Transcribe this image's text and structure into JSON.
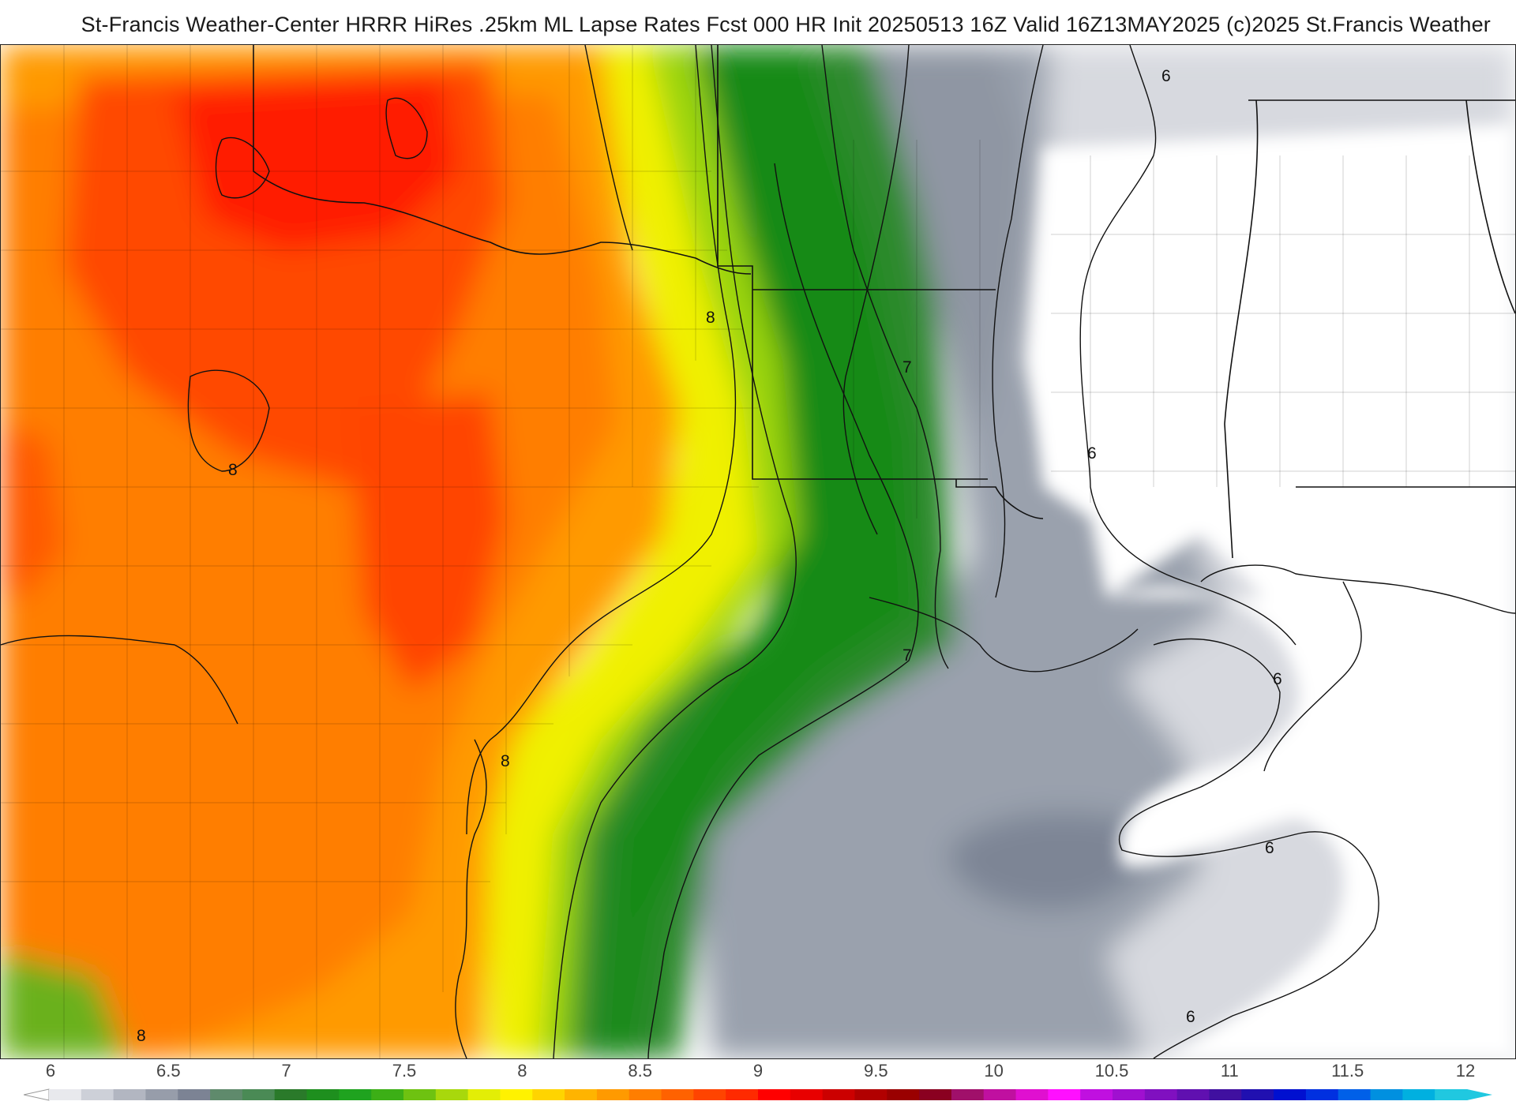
{
  "header": {
    "title": "St-Francis Weather-Center HRRR HiRes .25km ML Lapse Rates  Fcst 000 HR Init 20250513 16Z  Valid 16Z13MAY2025    (c)2025 St.Francis Weather"
  },
  "map": {
    "product": "ML Lapse Rates",
    "contour_labels": [
      "8",
      "8",
      "8",
      "8",
      "7",
      "7",
      "6",
      "6",
      "6",
      "6",
      "6"
    ]
  },
  "legend": {
    "ticks": [
      "6",
      "6.5",
      "7",
      "7.5",
      "8",
      "8.5",
      "9",
      "9.5",
      "10",
      "10.5",
      "11",
      "11.5",
      "12"
    ],
    "colors": [
      "#e8e9ed",
      "#cdd0d8",
      "#b2b6c1",
      "#979daa",
      "#7c8394",
      "#5f8a6c",
      "#4a8a55",
      "#2a7a2a",
      "#1e8f1e",
      "#1fa31f",
      "#3caf16",
      "#6ec211",
      "#a8d80c",
      "#e3ee06",
      "#fff200",
      "#ffd400",
      "#ffb400",
      "#ff9a00",
      "#ff7e00",
      "#ff6200",
      "#ff4400",
      "#ff2a00",
      "#ff0000",
      "#e80000",
      "#cc0000",
      "#b10000",
      "#9a0000",
      "#8a0020",
      "#a0106a",
      "#c010a0",
      "#e010d0",
      "#ff10ff",
      "#c010e0",
      "#a010d0",
      "#8010c0",
      "#6010b0",
      "#4010a0",
      "#2010b0",
      "#0010d0",
      "#0030e0",
      "#0060e8",
      "#0090e0",
      "#00b0e0",
      "#20c8e0"
    ]
  }
}
